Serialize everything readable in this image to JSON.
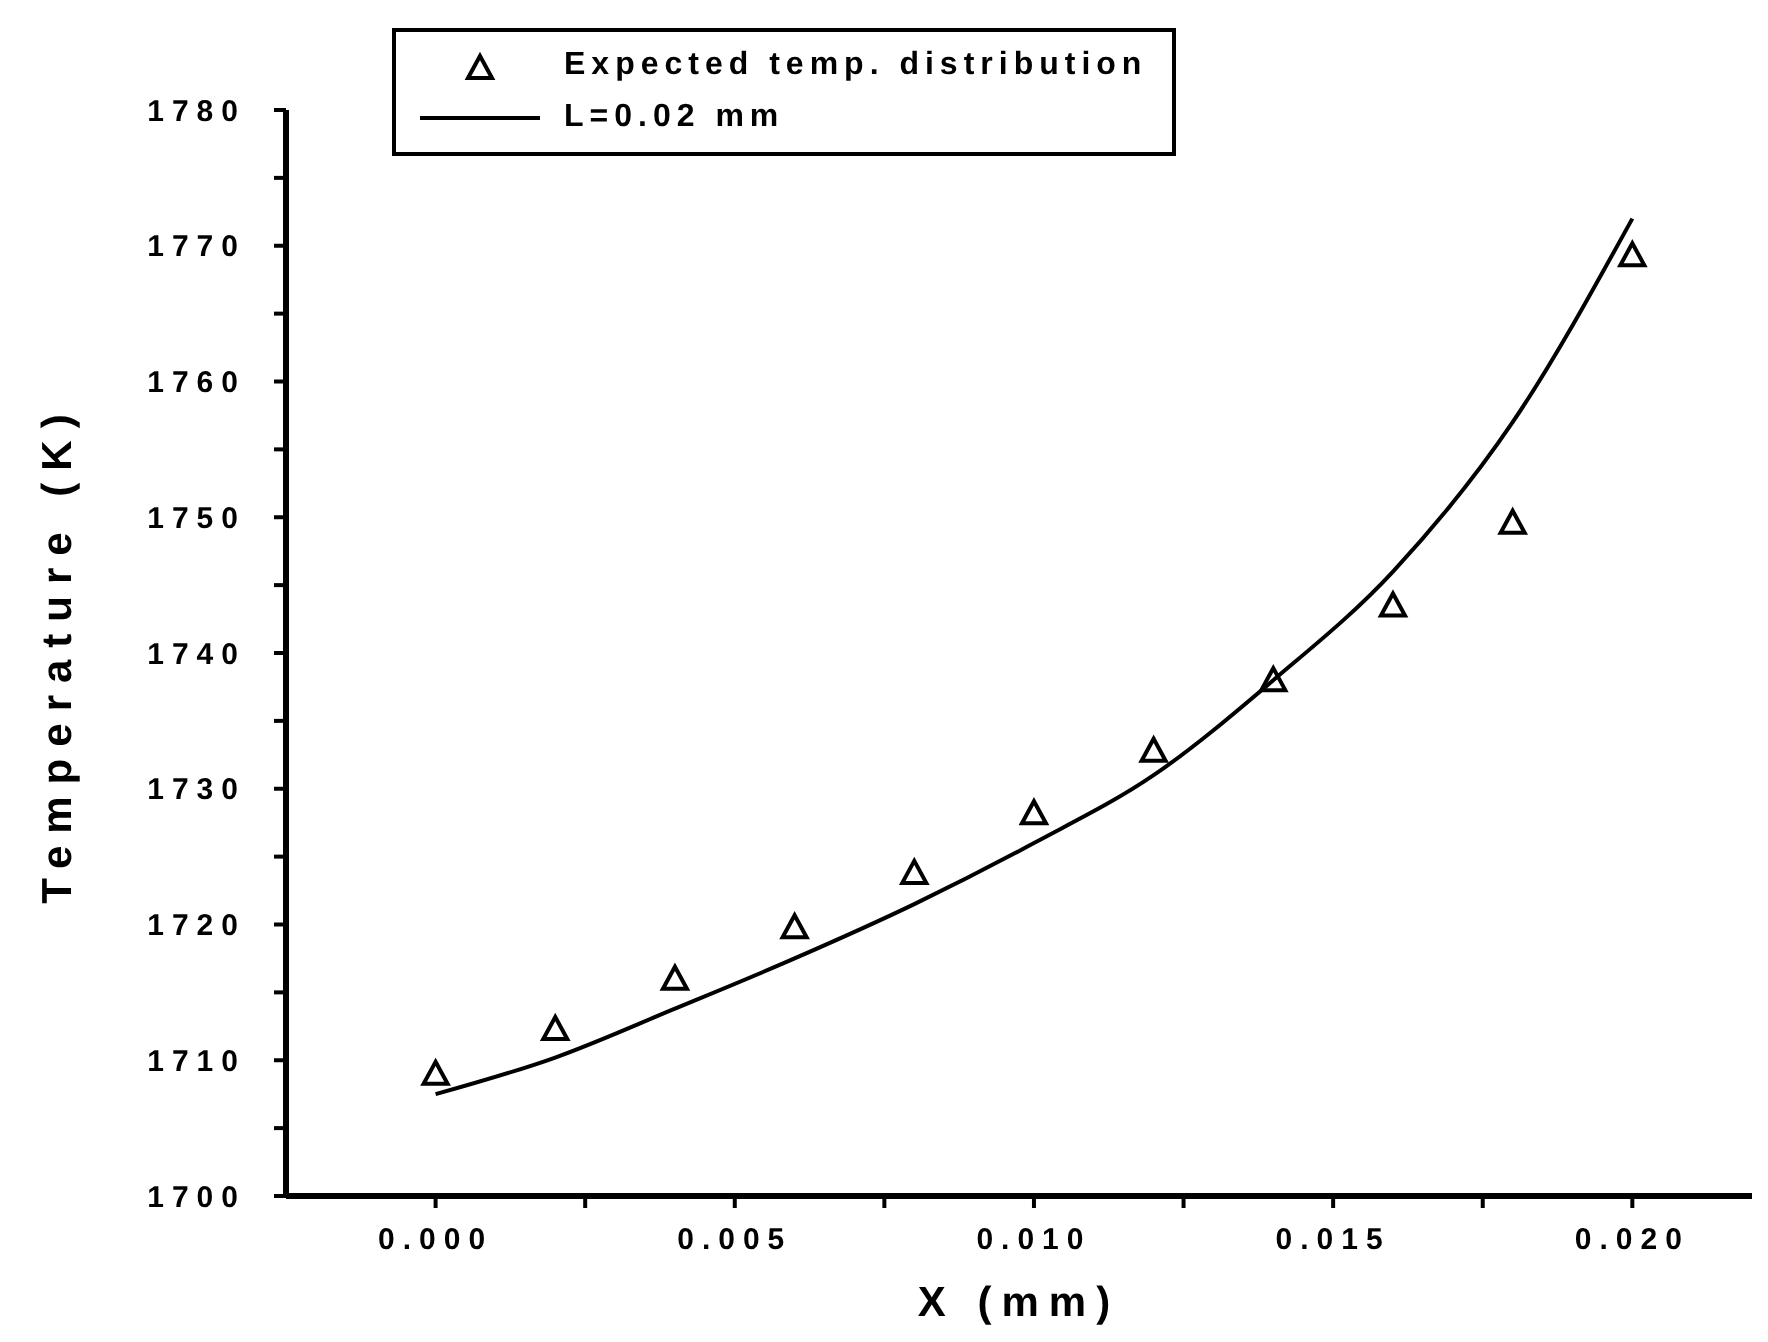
{
  "chart_data": {
    "type": "line",
    "xlabel": "X (mm)",
    "ylabel": "Temperature (K)",
    "xlim": [
      -0.0025,
      0.022
    ],
    "xticks": [
      {
        "value": 0,
        "label": "0.000"
      },
      {
        "value": 0.0025,
        "label": null
      },
      {
        "value": 0.005,
        "label": "0.005"
      },
      {
        "value": 0.0075,
        "label": null
      },
      {
        "value": 0.01,
        "label": "0.010"
      },
      {
        "value": 0.0125,
        "label": null
      },
      {
        "value": 0.015,
        "label": "0.015"
      },
      {
        "value": 0.0175,
        "label": null
      },
      {
        "value": 0.02,
        "label": "0.020"
      }
    ],
    "ylim": [
      1700,
      1780
    ],
    "yticks": [
      1700,
      {
        "value": 1705,
        "label": null
      },
      1710,
      {
        "value": 1715,
        "label": null
      },
      1720,
      {
        "value": 1725,
        "label": null
      },
      1730,
      {
        "value": 1735,
        "label": null
      },
      1740,
      {
        "value": 1745,
        "label": null
      },
      1750,
      {
        "value": 1755,
        "label": null
      },
      1760,
      {
        "value": 1765,
        "label": null
      },
      1770,
      {
        "value": 1775,
        "label": null
      },
      1780
    ],
    "grid": false,
    "legend": "top",
    "series": [
      {
        "name": "Expected temp. distribution",
        "type": "scatter",
        "marker": "triangle",
        "color": "#000000",
        "x": [
          0,
          0.002,
          0.004,
          0.006,
          0.008,
          0.01,
          0.012,
          0.014,
          0.016,
          0.018,
          0.02
        ],
        "values": [
          1709,
          1712.3,
          1716,
          1719.8,
          1723.8,
          1728.2,
          1732.8,
          1738,
          1743.5,
          1749.6,
          1769.3
        ]
      },
      {
        "name": "L=0.02 mm",
        "type": "line",
        "marker": "none",
        "line_style": "solid",
        "color": "#000000",
        "x": [
          0,
          0.002,
          0.004,
          0.006,
          0.008,
          0.01,
          0.012,
          0.014,
          0.016,
          0.018,
          0.02
        ],
        "values": [
          1707.5,
          1710.2,
          1713.8,
          1717.5,
          1721.5,
          1726,
          1731,
          1738,
          1746,
          1757,
          1772
        ]
      }
    ]
  }
}
